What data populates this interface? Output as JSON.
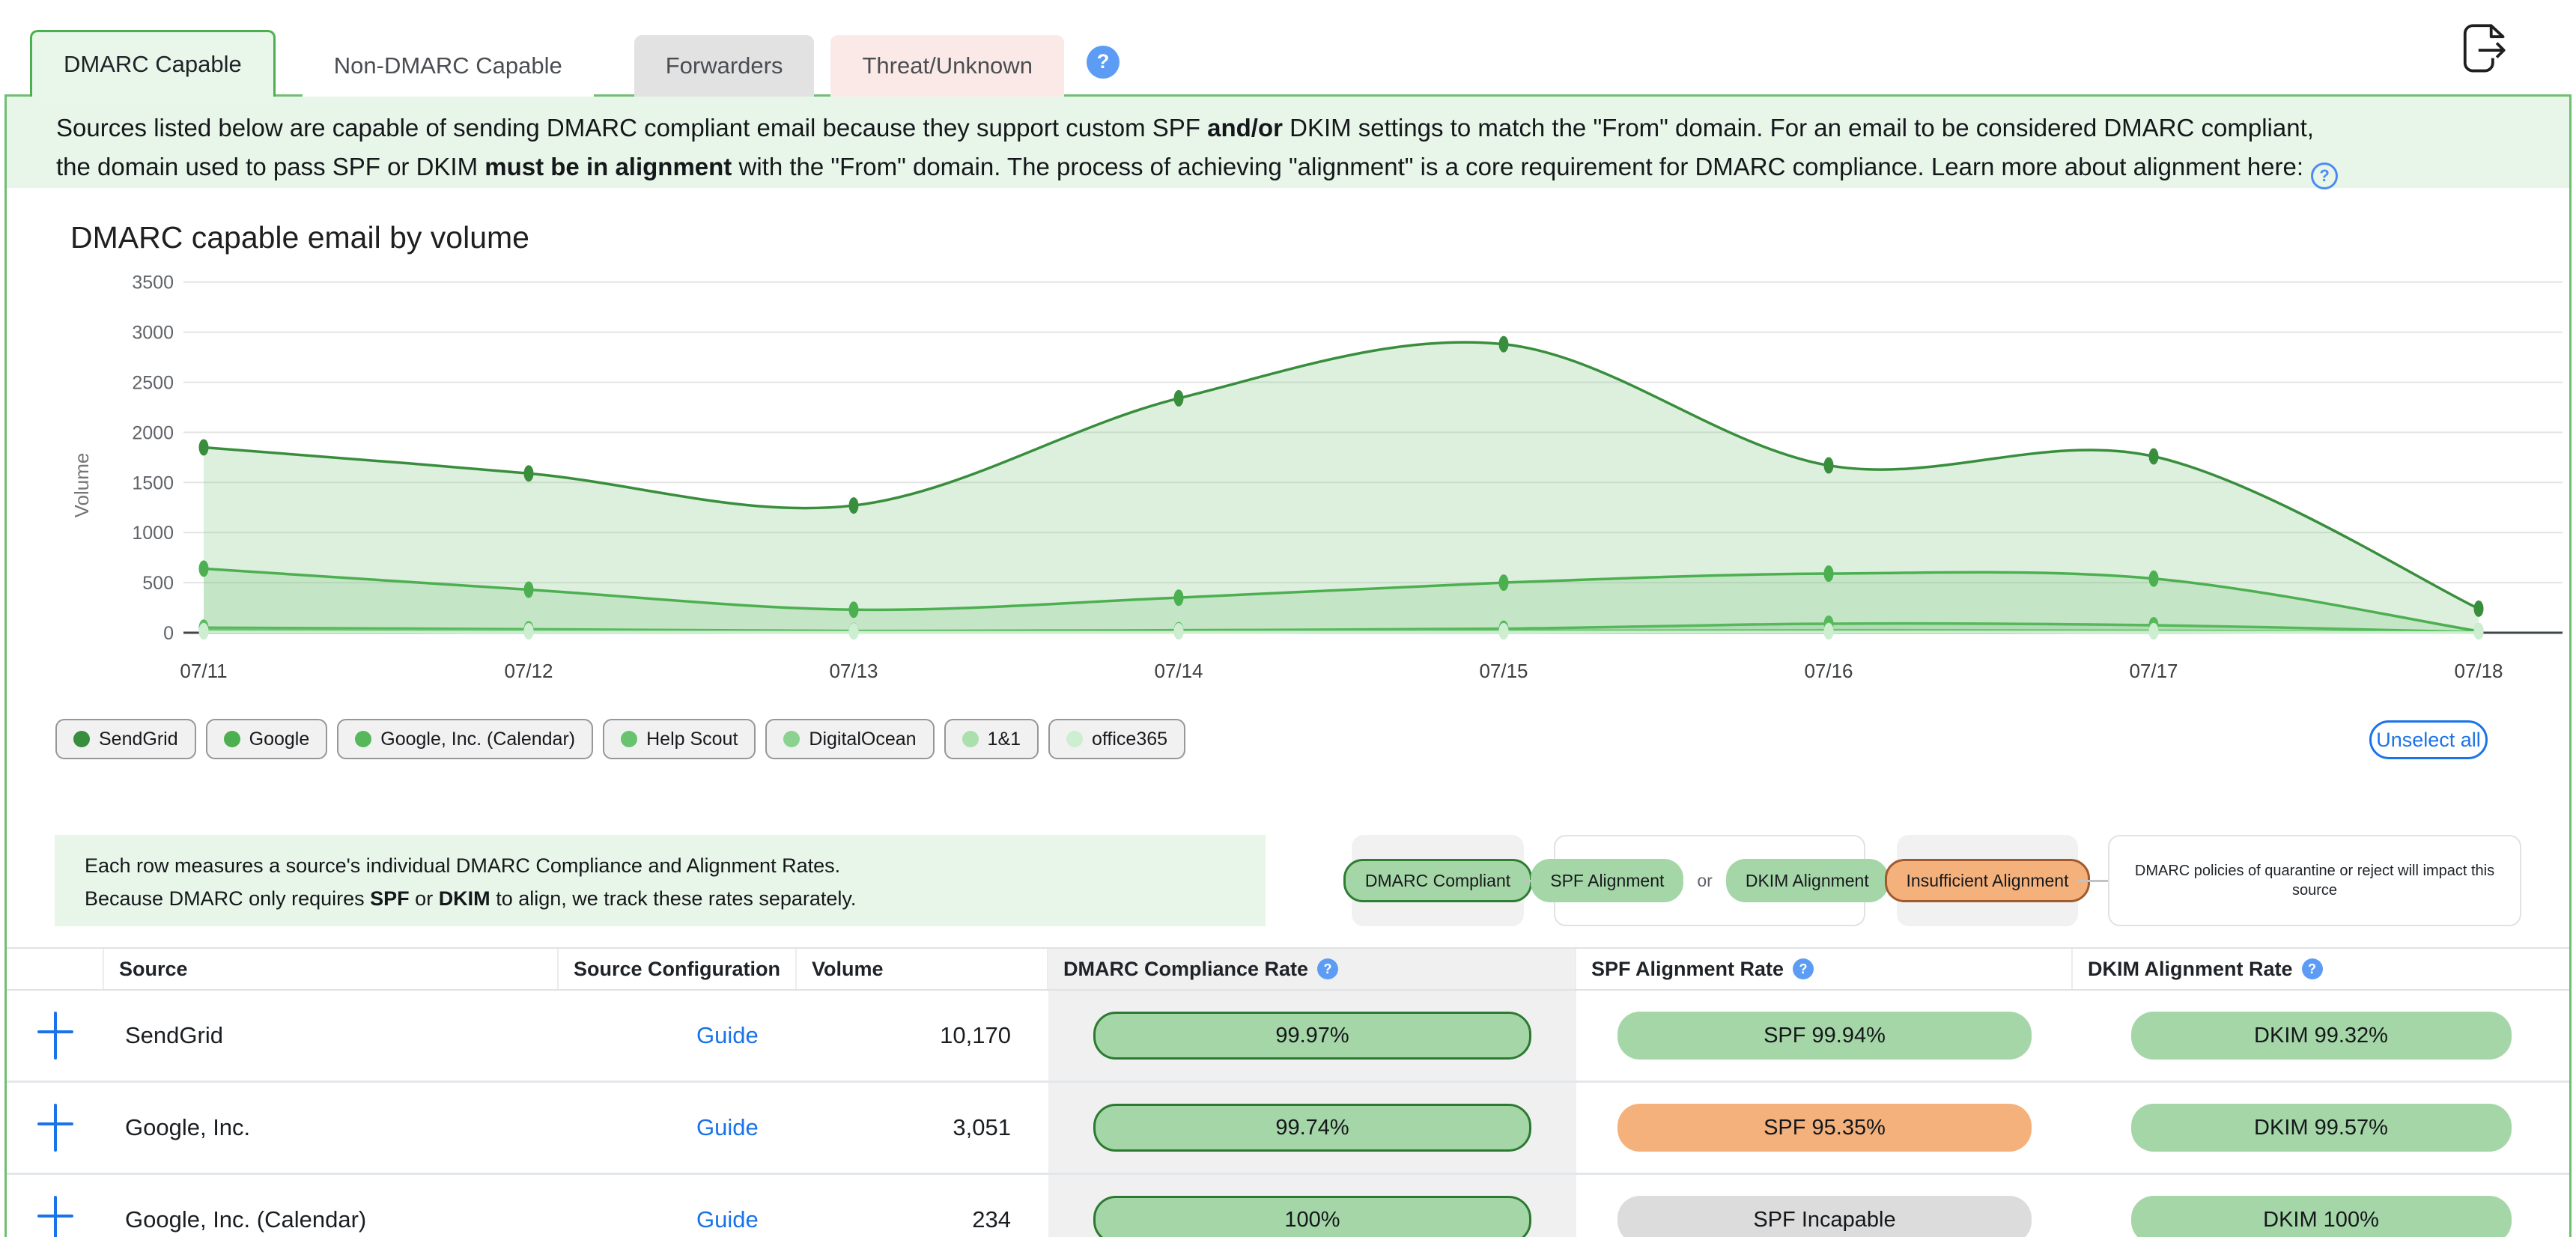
{
  "tabs": {
    "items": [
      {
        "label": "DMARC Capable"
      },
      {
        "label": "Non-DMARC Capable"
      },
      {
        "label": "Forwarders"
      },
      {
        "label": "Threat/Unknown"
      }
    ],
    "help_icon": "?"
  },
  "banner": {
    "l1a": "Sources listed below are capable of sending DMARC compliant email because they support custom SPF ",
    "l1b": "and/or",
    "l1c": " DKIM settings to match the \"From\" domain. For an email to be considered DMARC compliant,",
    "l2a": "the domain used to pass SPF or DKIM ",
    "l2b": "must be in alignment",
    "l2c": " with the \"From\" domain. The process of achieving \"alignment\" is a core requirement for DMARC compliance. Learn more about alignment here:",
    "help_icon": "?"
  },
  "chart_data": {
    "type": "area",
    "title": "DMARC capable email by volume",
    "xlabel": "",
    "ylabel": "Volume",
    "ylim": [
      0,
      3500
    ],
    "yticks": [
      0,
      500,
      1000,
      1500,
      2000,
      2500,
      3000,
      3500
    ],
    "grid": true,
    "legend_position": "bottom",
    "categories": [
      "07/11",
      "07/12",
      "07/13",
      "07/14",
      "07/15",
      "07/16",
      "07/17",
      "07/18"
    ],
    "series": [
      {
        "name": "SendGrid",
        "color": "#388e3c",
        "values": [
          1850,
          1590,
          1270,
          2340,
          2880,
          1670,
          1760,
          240
        ]
      },
      {
        "name": "Google",
        "color": "#4caf50",
        "values": [
          640,
          430,
          230,
          350,
          500,
          590,
          540,
          15
        ]
      },
      {
        "name": "Google, Inc. (Calendar)",
        "color": "#55b85a",
        "values": [
          50,
          35,
          18,
          25,
          40,
          90,
          75,
          5
        ]
      },
      {
        "name": "Help Scout",
        "color": "#69c26e",
        "values": [
          30,
          20,
          10,
          12,
          18,
          25,
          20,
          3
        ]
      },
      {
        "name": "DigitalOcean",
        "color": "#8bd190",
        "values": [
          15,
          10,
          6,
          7,
          10,
          12,
          10,
          2
        ]
      },
      {
        "name": "1&1",
        "color": "#abdfae",
        "values": [
          8,
          6,
          4,
          4,
          6,
          7,
          6,
          1
        ]
      },
      {
        "name": "office365",
        "color": "#cdeed0",
        "values": [
          4,
          3,
          2,
          2,
          3,
          4,
          3,
          1
        ]
      }
    ]
  },
  "chart_legend": {
    "unselect_label": "Unselect all"
  },
  "info_box": {
    "line1": "Each row measures a source's individual DMARC Compliance and Alignment Rates.",
    "l2a": "Because DMARC only requires ",
    "l2b": "SPF",
    "l2c": " or ",
    "l2d": "DKIM",
    "l2e": " to align, we track these rates separately."
  },
  "badge_legend": {
    "compliant": "DMARC Compliant",
    "spf": "SPF Alignment",
    "or_text": "or",
    "dkim": "DKIM Alignment",
    "insufficient": "Insufficient Alignment",
    "note": "DMARC policies of quarantine or reject will impact this source"
  },
  "table": {
    "headers": {
      "source": "Source",
      "config": "Source Configuration",
      "volume": "Volume",
      "dmarc": "DMARC Compliance Rate",
      "spf": "SPF Alignment Rate",
      "dkim": "DKIM Alignment Rate"
    },
    "help_icon": "?",
    "rows": [
      {
        "source": "SendGrid",
        "config": "Guide",
        "volume": "10,170",
        "dmarc": {
          "text": "99.97%",
          "type": "compliant"
        },
        "spf": {
          "text": "SPF 99.94%",
          "type": "green"
        },
        "dkim": {
          "text": "DKIM 99.32%",
          "type": "green"
        }
      },
      {
        "source": "Google, Inc.",
        "config": "Guide",
        "volume": "3,051",
        "dmarc": {
          "text": "99.74%",
          "type": "compliant"
        },
        "spf": {
          "text": "SPF 95.35%",
          "type": "orange"
        },
        "dkim": {
          "text": "DKIM 99.57%",
          "type": "green"
        }
      },
      {
        "source": "Google, Inc. (Calendar)",
        "config": "Guide",
        "volume": "234",
        "dmarc": {
          "text": "100%",
          "type": "compliant"
        },
        "spf": {
          "text": "SPF Incapable",
          "type": "gray"
        },
        "dkim": {
          "text": "DKIM 100%",
          "type": "green"
        }
      }
    ]
  },
  "colors": {
    "accent_green": "#4caf50",
    "banner_bg": "#e8f5e9",
    "pill_green": "#a5d6a7",
    "pill_green_border": "#2e7d32",
    "pill_orange": "#f4b17c",
    "pill_orange_border": "#a05a2c",
    "pill_gray": "#dcdcdc",
    "link_blue": "#1a73e8",
    "help_blue": "#5c9cf5"
  }
}
